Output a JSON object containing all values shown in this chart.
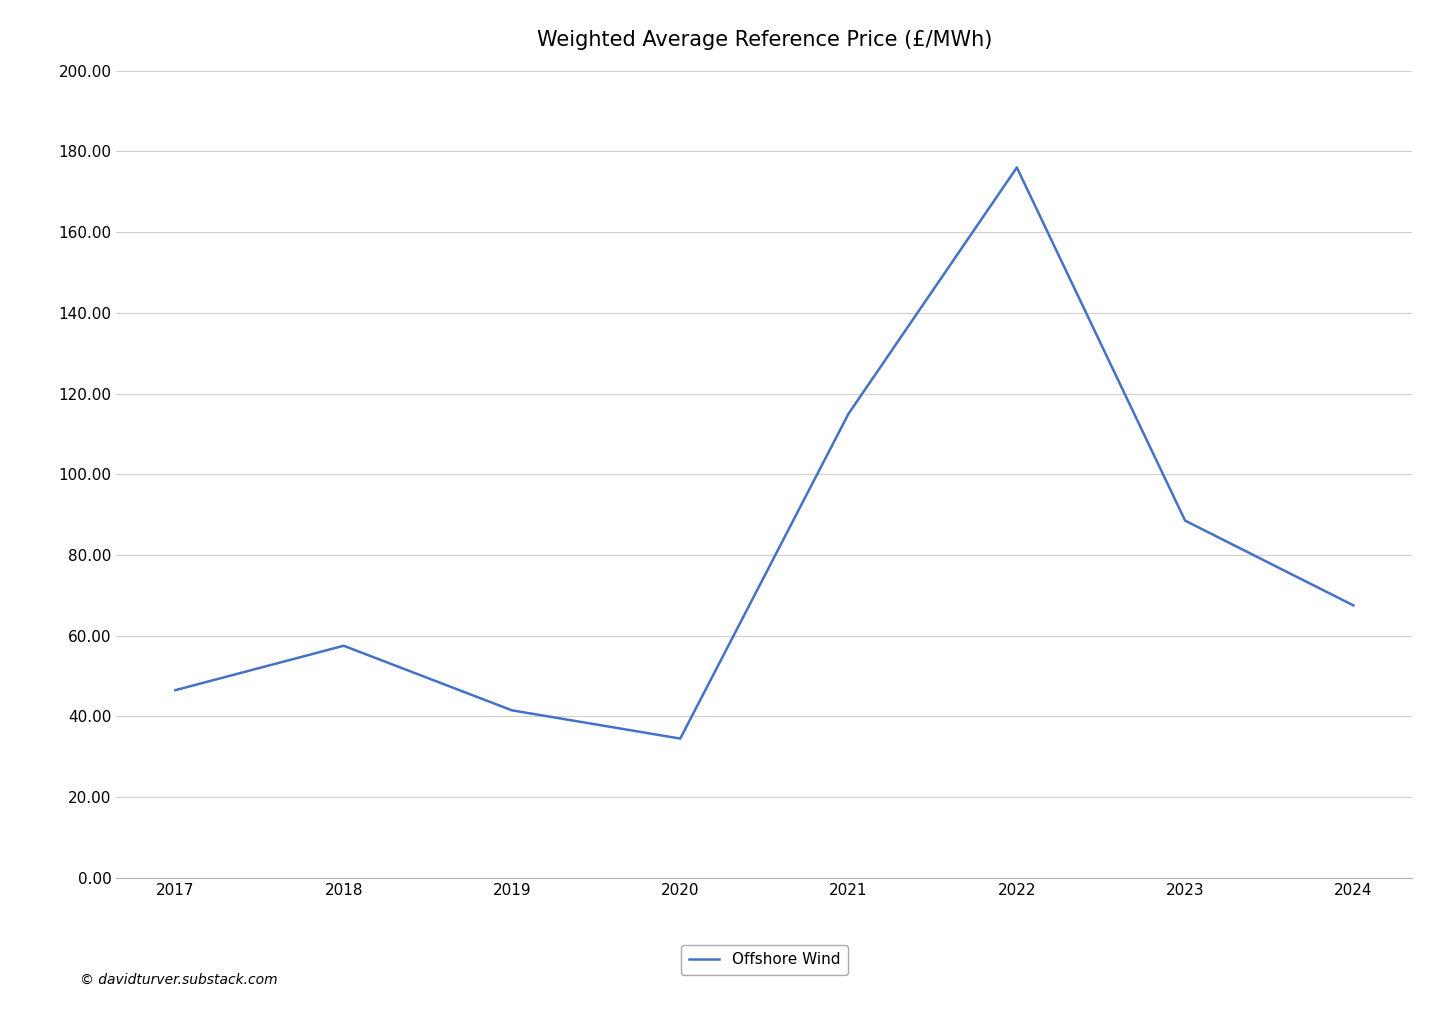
{
  "title": "Weighted Average Reference Price (£/MWh)",
  "years": [
    2017,
    2018,
    2019,
    2020,
    2021,
    2022,
    2023,
    2024
  ],
  "offshore_wind": [
    46.5,
    57.5,
    41.5,
    34.5,
    115.0,
    176.0,
    88.5,
    67.5
  ],
  "line_color": "#4472C4",
  "line_width": 1.8,
  "ylim": [
    0,
    200
  ],
  "ytick_step": 20,
  "legend_label": "Offshore Wind",
  "watermark": "© davidturver.substack.com",
  "background_color": "#ffffff",
  "grid_color": "#d0d0d0",
  "title_fontsize": 15,
  "tick_fontsize": 11,
  "watermark_fontsize": 10
}
